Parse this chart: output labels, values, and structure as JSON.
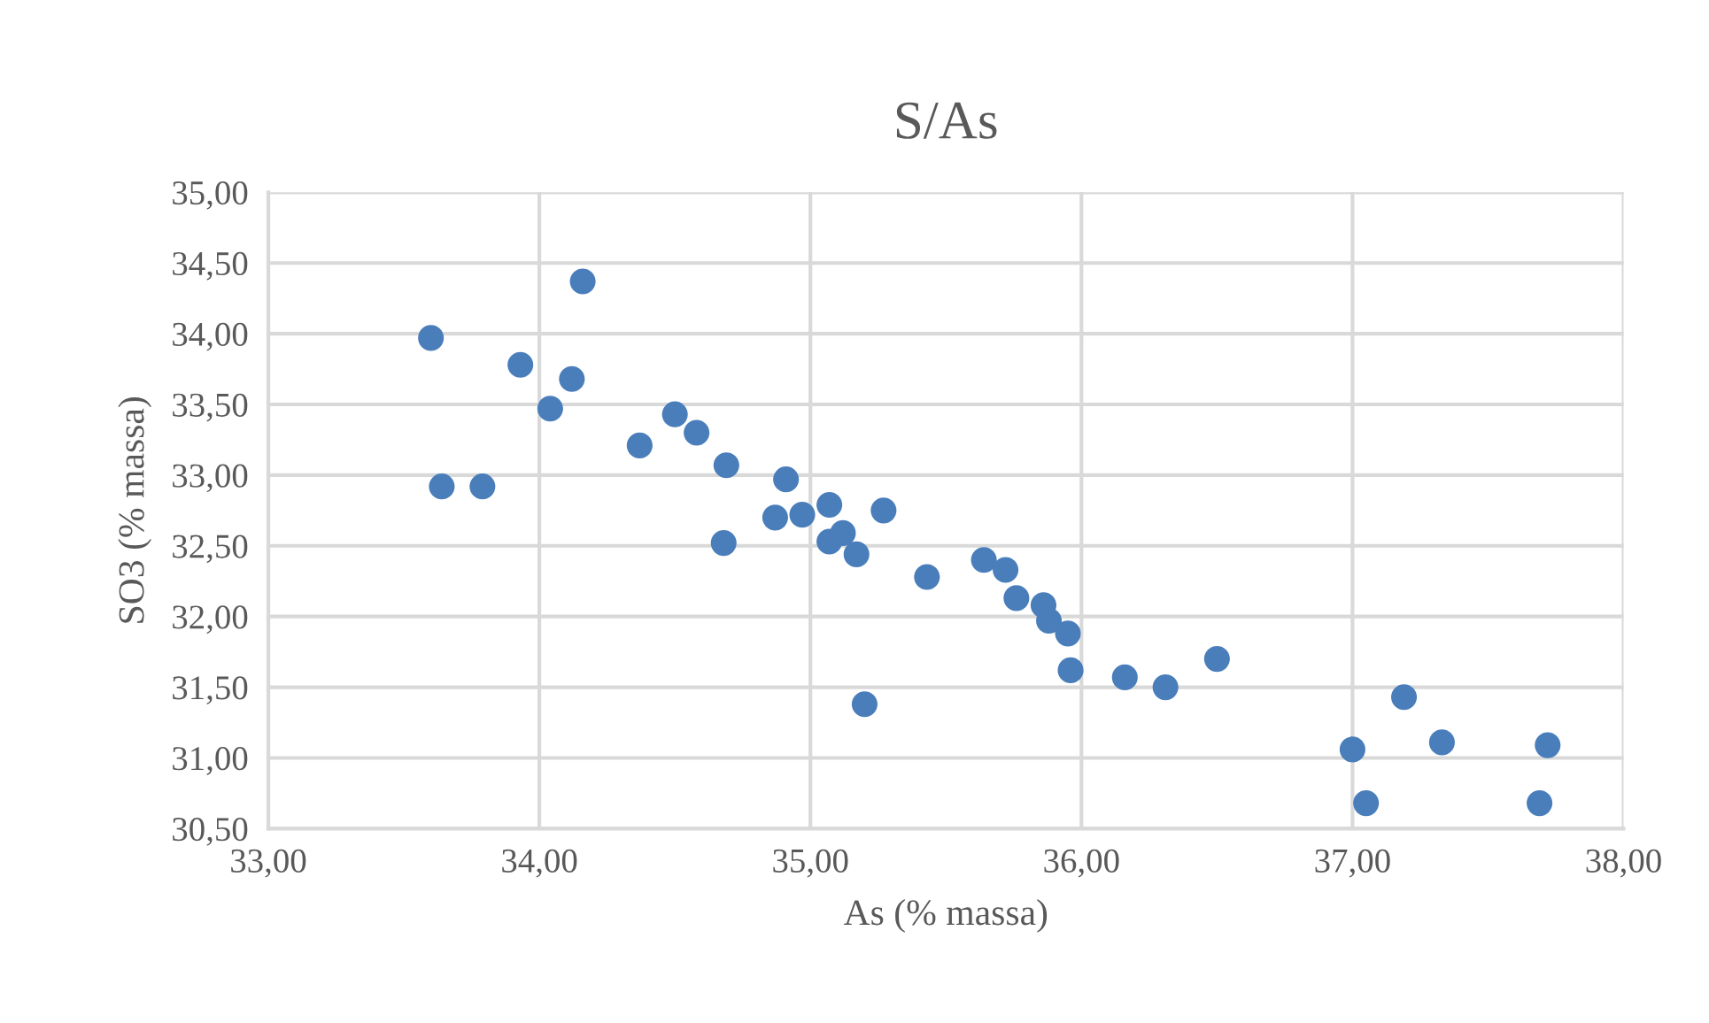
{
  "chart_data": {
    "type": "scatter",
    "title": "S/As",
    "xlabel": "As (% massa)",
    "ylabel": "SO3 (% massa)",
    "x": [
      34.16,
      33.6,
      33.93,
      34.12,
      34.04,
      33.64,
      33.79,
      34.37,
      34.5,
      34.58,
      34.69,
      34.68,
      34.91,
      34.87,
      34.97,
      35.07,
      35.07,
      35.12,
      35.17,
      35.27,
      35.43,
      35.2,
      35.64,
      35.72,
      35.76,
      35.86,
      35.88,
      35.95,
      35.96,
      36.16,
      36.31,
      36.5,
      37.0,
      37.05,
      37.19,
      37.33,
      37.72,
      37.69
    ],
    "series": [
      {
        "color": "#4a7ebb",
        "values": [
          34.37,
          33.97,
          33.78,
          33.68,
          33.47,
          32.92,
          32.92,
          33.21,
          33.43,
          33.3,
          33.07,
          32.52,
          32.97,
          32.7,
          32.72,
          32.79,
          32.53,
          32.59,
          32.44,
          32.75,
          32.28,
          31.38,
          32.4,
          32.33,
          32.13,
          32.08,
          31.97,
          31.88,
          31.62,
          31.57,
          31.5,
          31.7,
          31.06,
          30.68,
          31.43,
          31.11,
          31.09,
          30.68
        ]
      }
    ],
    "marker": "circle",
    "grid": true,
    "xlim": [
      33,
      38
    ],
    "ylim": [
      30.5,
      35
    ],
    "xticks": [
      {
        "value": 33,
        "label": "33,00"
      },
      {
        "value": 34,
        "label": "34,00"
      },
      {
        "value": 35,
        "label": "35,00"
      },
      {
        "value": 36,
        "label": "36,00"
      },
      {
        "value": 37,
        "label": "37,00"
      },
      {
        "value": 38,
        "label": "38,00"
      }
    ],
    "yticks": [
      {
        "value": 30.5,
        "label": "30,50"
      },
      {
        "value": 31,
        "label": "31,00"
      },
      {
        "value": 31.5,
        "label": "31,50"
      },
      {
        "value": 32,
        "label": "32,00"
      },
      {
        "value": 32.5,
        "label": "32,50"
      },
      {
        "value": 33,
        "label": "33,00"
      },
      {
        "value": 33.5,
        "label": "33,50"
      },
      {
        "value": 34,
        "label": "34,00"
      },
      {
        "value": 34.5,
        "label": "34,50"
      },
      {
        "value": 35,
        "label": "35,00"
      }
    ]
  }
}
